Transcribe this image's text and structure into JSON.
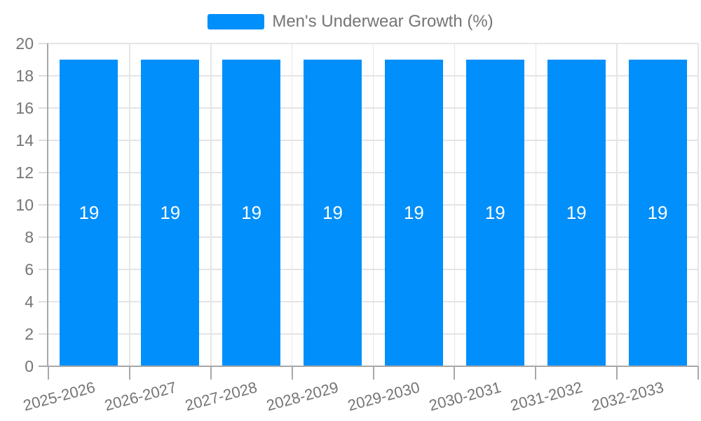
{
  "chart_data": {
    "type": "bar",
    "legend": [
      {
        "label": "Men's Underwear Growth (%)",
        "color": "#008FFB"
      }
    ],
    "categories": [
      "2025-2026",
      "2026-2027",
      "2027-2028",
      "2028-2029",
      "2029-2030",
      "2030-2031",
      "2031-2032",
      "2032-2033"
    ],
    "series": [
      {
        "name": "Men's Underwear Growth (%)",
        "values": [
          19,
          19,
          19,
          19,
          19,
          19,
          19,
          19
        ]
      }
    ],
    "data_labels": [
      "19",
      "19",
      "19",
      "19",
      "19",
      "19",
      "19",
      "19"
    ],
    "xlabel": "",
    "ylabel": "",
    "ylim": [
      0,
      20
    ],
    "yticks": [
      0,
      2,
      4,
      6,
      8,
      10,
      12,
      14,
      16,
      18,
      20
    ],
    "grid": "on",
    "legend_position": "top",
    "colors": {
      "bar": "#008FFB",
      "data_label": "#ffffff",
      "axis_label": "#757575",
      "gridline": "#e5e5e5",
      "tick": "#dedede",
      "axis_line": "#a8a8a8"
    }
  }
}
